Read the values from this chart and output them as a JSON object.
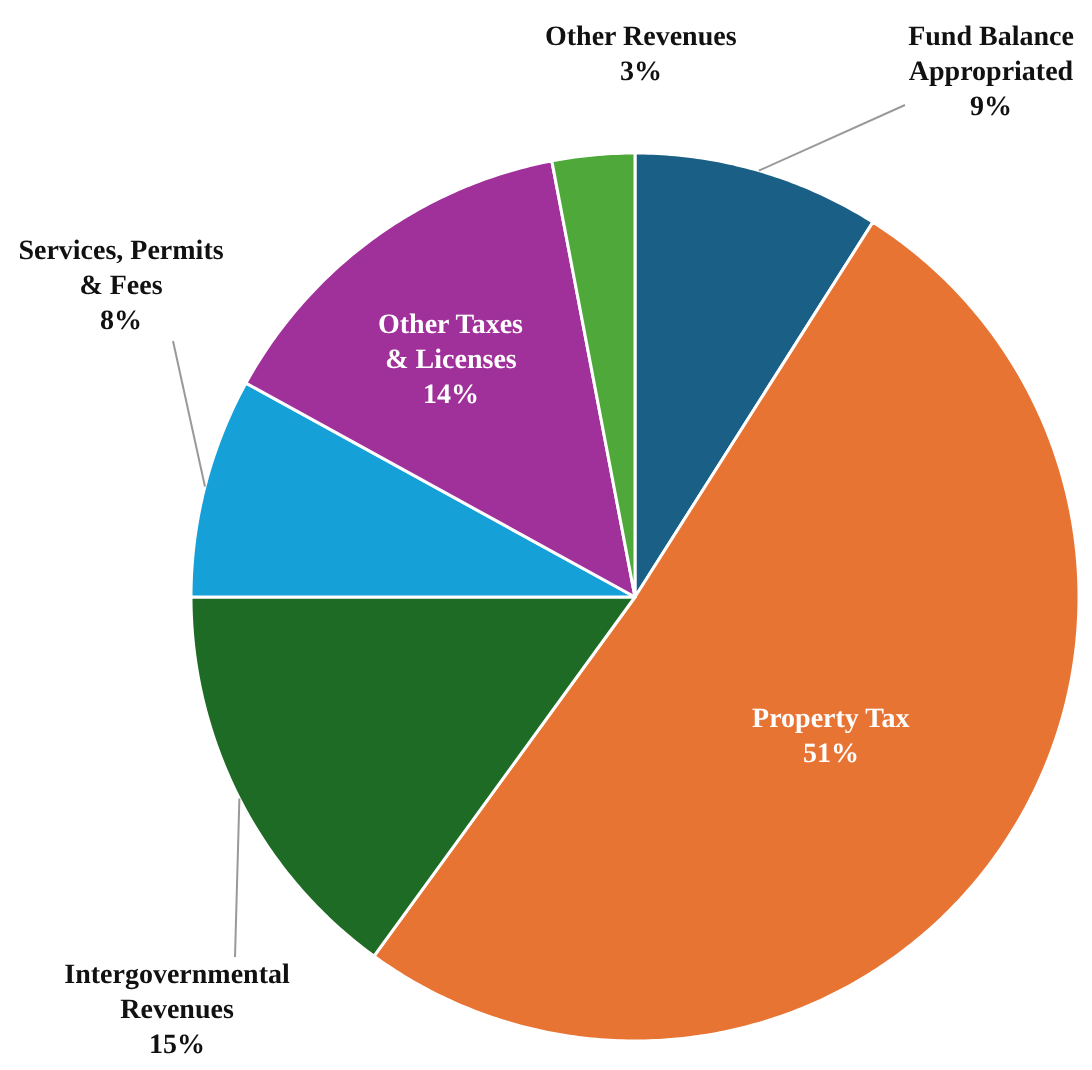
{
  "chart_data": {
    "type": "pie",
    "categories": [
      "Fund Balance Appropriated",
      "Property Tax",
      "Intergovernmental Revenues",
      "Services, Permits & Fees",
      "Other Taxes & Licenses",
      "Other Revenues"
    ],
    "values": [
      9,
      51,
      15,
      8,
      14,
      3
    ],
    "colors": [
      "#1a5f85",
      "#e87434",
      "#1e6b26",
      "#16a0d8",
      "#a0309a",
      "#4ea83a"
    ],
    "value_labels": [
      "9%",
      "51%",
      "15%",
      "8%",
      "14%",
      "3%"
    ]
  }
}
